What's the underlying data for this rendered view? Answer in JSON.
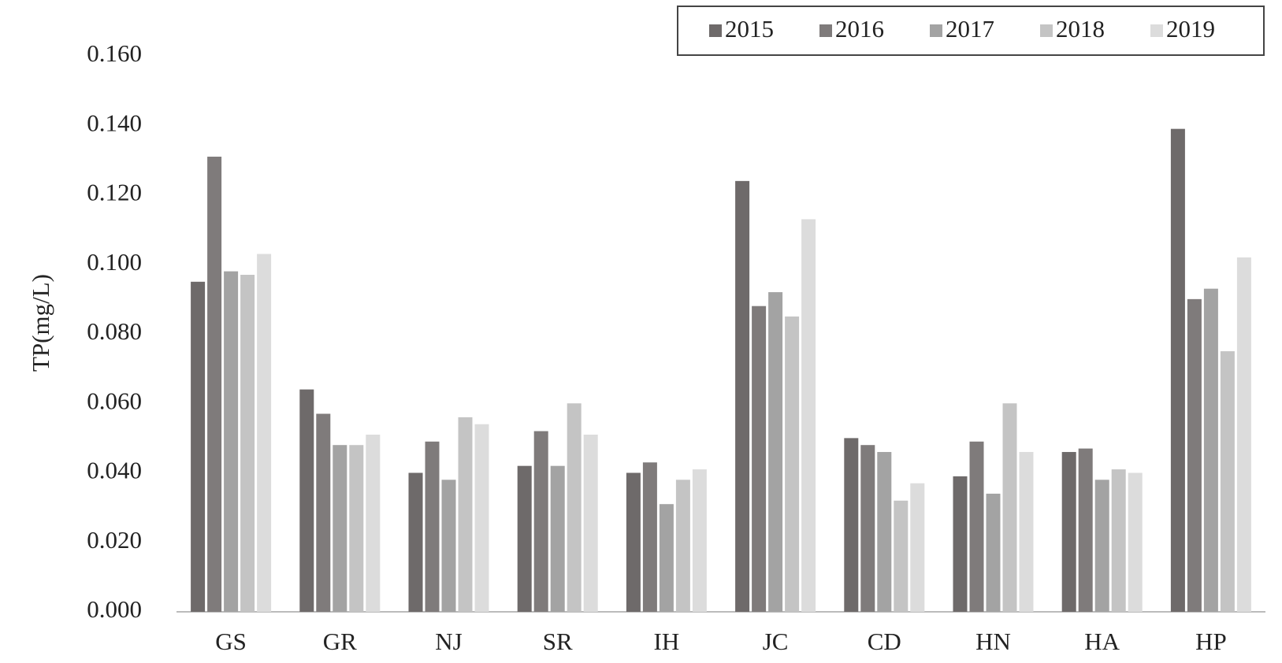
{
  "chart_data": {
    "type": "bar",
    "y_label": "TP(mg/L)",
    "categories": [
      "GS",
      "GR",
      "NJ",
      "SR",
      "IH",
      "JC",
      "CD",
      "HN",
      "HA",
      "HP"
    ],
    "series": [
      {
        "name": "2015",
        "color": "#6e6a6a",
        "values": [
          0.095,
          0.064,
          0.04,
          0.042,
          0.04,
          0.124,
          0.05,
          0.039,
          0.046,
          0.139
        ]
      },
      {
        "name": "2016",
        "color": "#7f7b7b",
        "values": [
          0.131,
          0.057,
          0.049,
          0.052,
          0.043,
          0.088,
          0.048,
          0.049,
          0.047,
          0.09
        ]
      },
      {
        "name": "2017",
        "color": "#a3a3a3",
        "values": [
          0.098,
          0.048,
          0.038,
          0.042,
          0.031,
          0.092,
          0.046,
          0.034,
          0.038,
          0.093
        ]
      },
      {
        "name": "2018",
        "color": "#c4c4c4",
        "values": [
          0.097,
          0.048,
          0.056,
          0.06,
          0.038,
          0.085,
          0.032,
          0.06,
          0.041,
          0.075
        ]
      },
      {
        "name": "2019",
        "color": "#dcdcdc",
        "values": [
          0.103,
          0.051,
          0.054,
          0.051,
          0.041,
          0.113,
          0.037,
          0.046,
          0.04,
          0.102
        ]
      }
    ],
    "ylim": [
      0,
      0.16
    ],
    "yticks": [
      {
        "value": 0,
        "label": "0.000"
      },
      {
        "value": 0.02,
        "label": "0.020"
      },
      {
        "value": 0.04,
        "label": "0.040"
      },
      {
        "value": 0.06,
        "label": "0.060"
      },
      {
        "value": 0.08,
        "label": "0.080"
      },
      {
        "value": 0.1,
        "label": "0.100"
      },
      {
        "value": 0.12,
        "label": "0.120"
      },
      {
        "value": 0.14,
        "label": "0.140"
      },
      {
        "value": 0.16,
        "label": "0.160"
      }
    ],
    "grid": false,
    "legend": "top-right"
  }
}
